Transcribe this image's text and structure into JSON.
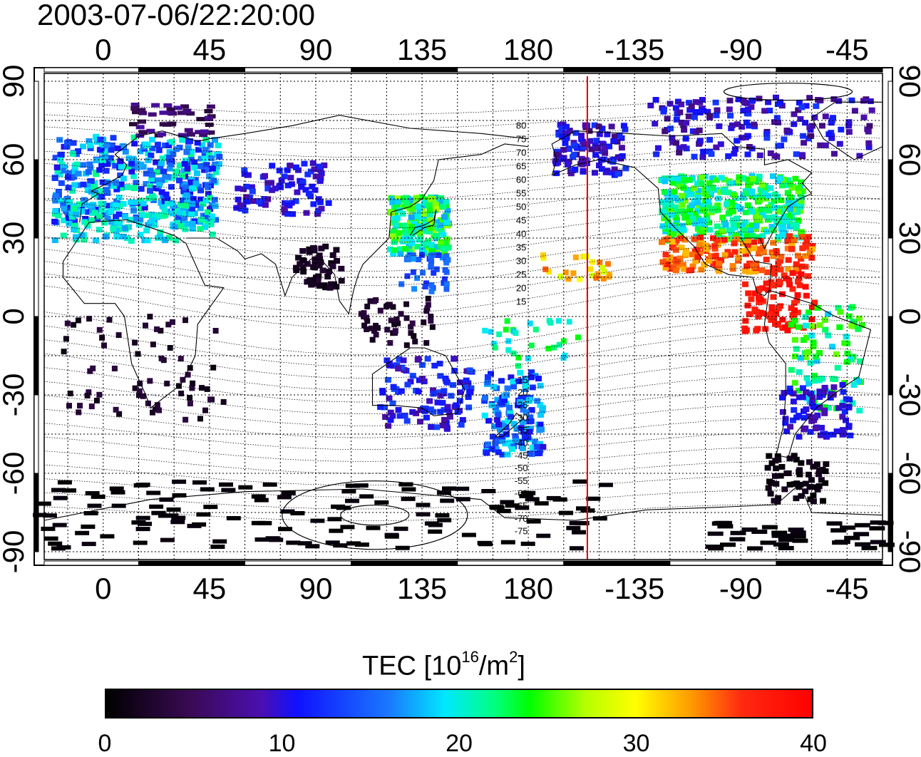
{
  "title": "2003-07-06/22:20:00",
  "map": {
    "lon_labels": [
      "0",
      "45",
      "90",
      "135",
      "180",
      "-135",
      "-90",
      "-45"
    ],
    "lon_values": [
      0,
      45,
      90,
      135,
      180,
      225,
      270,
      315
    ],
    "lat_labels": [
      "90",
      "60",
      "30",
      "0",
      "-30",
      "-60",
      "-90"
    ],
    "lat_values": [
      90,
      60,
      30,
      0,
      -30,
      -60,
      -90
    ],
    "lon_range": [
      -25,
      330
    ],
    "lat_range": [
      -93,
      93
    ],
    "grid": "dotted every 15 degrees",
    "terminator_line": {
      "lon": 205,
      "color": "#e00000"
    },
    "mlat_labels_north": [
      "80",
      "75",
      "70",
      "65",
      "60",
      "55",
      "50",
      "45",
      "40",
      "35",
      "30",
      "25",
      "20",
      "15"
    ],
    "mlat_labels_south": [
      "-15",
      "-20",
      "-25",
      "-30",
      "-35",
      "-40",
      "-45",
      "-50",
      "-55",
      "-60",
      "-65",
      "-70",
      "-75"
    ]
  },
  "colorbar": {
    "title_main": "TEC  [10",
    "title_sup1": "16",
    "title_mid": "/m",
    "title_sup2": "2",
    "title_end": "]",
    "ticks": [
      "0",
      "10",
      "20",
      "30",
      "40"
    ],
    "tick_values": [
      0,
      10,
      20,
      30,
      40
    ],
    "range": [
      0,
      40
    ],
    "colormap": [
      "#000000",
      "#3a0a55",
      "#4b0fb0",
      "#1010ff",
      "#1a78ff",
      "#00e8ff",
      "#00ff80",
      "#00ff00",
      "#b8ff00",
      "#ffff00",
      "#ff9900",
      "#ff2a10",
      "#ff0000"
    ]
  }
}
